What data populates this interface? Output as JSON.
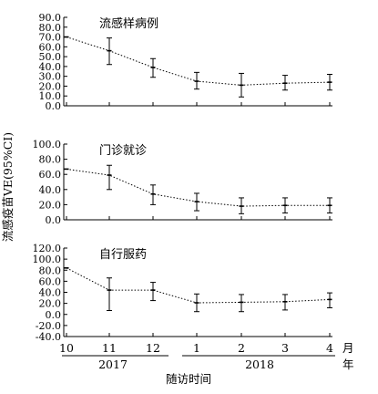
{
  "ylabel": "流感疫苗VE(95%CI)",
  "xlabel": "随访时间",
  "month_unit": "月",
  "year_unit": "年",
  "months": [
    "10",
    "11",
    "12",
    "1",
    "2",
    "3",
    "4"
  ],
  "years": [
    "2017",
    "2018"
  ],
  "chart_data": [
    {
      "type": "line",
      "title": "流感样病例",
      "categories": [
        "10",
        "11",
        "12",
        "1",
        "2",
        "3",
        "4"
      ],
      "ylim": [
        0,
        90
      ],
      "yticks": [
        "0.0",
        "10.0",
        "20.0",
        "30.0",
        "40.0",
        "50.0",
        "60.0",
        "70.0",
        "80.0",
        "90.0"
      ],
      "values": [
        70,
        56,
        39,
        25,
        21,
        23,
        24
      ],
      "lower": [
        null,
        42,
        29,
        17,
        9,
        16,
        16
      ],
      "upper": [
        null,
        69,
        48,
        34,
        33,
        31,
        32
      ]
    },
    {
      "type": "line",
      "title": "门诊就诊",
      "categories": [
        "10",
        "11",
        "12",
        "1",
        "2",
        "3",
        "4"
      ],
      "ylim": [
        0,
        100
      ],
      "yticks": [
        "0.0",
        "20.0",
        "40.0",
        "60.0",
        "80.0",
        "100.0"
      ],
      "values": [
        67,
        59,
        34,
        24,
        18,
        19,
        19
      ],
      "lower": [
        null,
        40,
        20,
        12,
        8,
        9,
        9
      ],
      "upper": [
        null,
        72,
        46,
        35,
        29,
        29,
        29
      ]
    },
    {
      "type": "line",
      "title": "自行服药",
      "categories": [
        "10",
        "11",
        "12",
        "1",
        "2",
        "3",
        "4"
      ],
      "ylim": [
        -40,
        120
      ],
      "yticks": [
        "-40.0",
        "-20.0",
        "0.0",
        "20.0",
        "40.0",
        "60.0",
        "80.0",
        "100.0",
        "120.0"
      ],
      "values": [
        84,
        44,
        44,
        21,
        22,
        23,
        27
      ],
      "lower": [
        null,
        7,
        25,
        5,
        5,
        8,
        12
      ],
      "upper": [
        null,
        66,
        58,
        37,
        36,
        36,
        39
      ]
    }
  ]
}
